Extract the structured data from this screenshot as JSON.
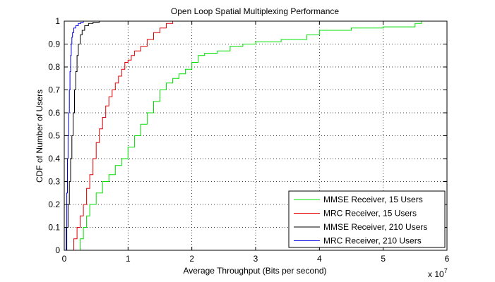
{
  "chart_data": {
    "type": "line",
    "title": "Open Loop Spatial Multiplexing Performance",
    "xlabel": "Average Throughput (Bits per second)",
    "ylabel": "CDF of Number of Users",
    "x_multiplier_label": "x 10",
    "x_multiplier_exponent": "7",
    "xlim": [
      0,
      6
    ],
    "ylim": [
      0,
      1
    ],
    "xticks": [
      "0",
      "1",
      "2",
      "3",
      "4",
      "5",
      "6"
    ],
    "yticks": [
      "0",
      "0.1",
      "0.2",
      "0.3",
      "0.4",
      "0.5",
      "0.6",
      "0.7",
      "0.8",
      "0.9",
      "1"
    ],
    "grid": true,
    "legend_position": "bottom-right",
    "step": true,
    "series": [
      {
        "name": "MMSE Receiver, 15 Users",
        "color": "#00e000",
        "x": [
          0.2,
          0.25,
          0.3,
          0.35,
          0.4,
          0.5,
          0.6,
          0.7,
          0.8,
          0.9,
          1.0,
          1.1,
          1.2,
          1.3,
          1.4,
          1.5,
          1.6,
          1.7,
          1.8,
          1.9,
          2.0,
          2.1,
          2.2,
          2.4,
          2.6,
          2.8,
          3.0,
          3.4,
          3.8,
          4.0,
          4.5,
          5.0,
          5.5,
          5.6
        ],
        "y": [
          0.0,
          0.05,
          0.1,
          0.15,
          0.2,
          0.25,
          0.3,
          0.33,
          0.37,
          0.4,
          0.45,
          0.5,
          0.55,
          0.6,
          0.65,
          0.7,
          0.73,
          0.75,
          0.77,
          0.79,
          0.82,
          0.85,
          0.86,
          0.87,
          0.89,
          0.9,
          0.91,
          0.92,
          0.94,
          0.96,
          0.97,
          0.975,
          0.99,
          1.0
        ]
      },
      {
        "name": "MRC Receiver, 15 Users",
        "color": "#e00000",
        "x": [
          0.1,
          0.15,
          0.2,
          0.25,
          0.3,
          0.35,
          0.4,
          0.45,
          0.5,
          0.55,
          0.6,
          0.65,
          0.7,
          0.75,
          0.8,
          0.85,
          0.9,
          0.95,
          1.0,
          1.05,
          1.1,
          1.2,
          1.3,
          1.4,
          1.5,
          1.6,
          1.7
        ],
        "y": [
          0.0,
          0.05,
          0.1,
          0.15,
          0.2,
          0.27,
          0.33,
          0.4,
          0.47,
          0.53,
          0.58,
          0.63,
          0.67,
          0.7,
          0.73,
          0.76,
          0.79,
          0.82,
          0.83,
          0.85,
          0.87,
          0.89,
          0.92,
          0.95,
          0.97,
          0.99,
          1.0
        ]
      },
      {
        "name": "MMSE Receiver, 210 Users",
        "color": "#000000",
        "x": [
          0.02,
          0.04,
          0.06,
          0.08,
          0.1,
          0.12,
          0.14,
          0.16,
          0.18,
          0.2,
          0.22,
          0.25,
          0.28,
          0.32,
          0.38,
          0.45,
          0.55
        ],
        "y": [
          0.0,
          0.1,
          0.2,
          0.3,
          0.4,
          0.5,
          0.6,
          0.7,
          0.78,
          0.85,
          0.9,
          0.94,
          0.96,
          0.98,
          0.99,
          0.995,
          1.0
        ]
      },
      {
        "name": "MRC Receiver, 210 Users",
        "color": "#0000e0",
        "x": [
          0.02,
          0.03,
          0.04,
          0.05,
          0.06,
          0.07,
          0.08,
          0.09,
          0.1,
          0.11,
          0.12,
          0.13,
          0.15,
          0.18,
          0.22,
          0.26,
          0.3
        ],
        "y": [
          0.0,
          0.1,
          0.25,
          0.4,
          0.5,
          0.6,
          0.7,
          0.78,
          0.85,
          0.9,
          0.93,
          0.95,
          0.97,
          0.98,
          0.99,
          0.995,
          1.0
        ]
      }
    ]
  }
}
